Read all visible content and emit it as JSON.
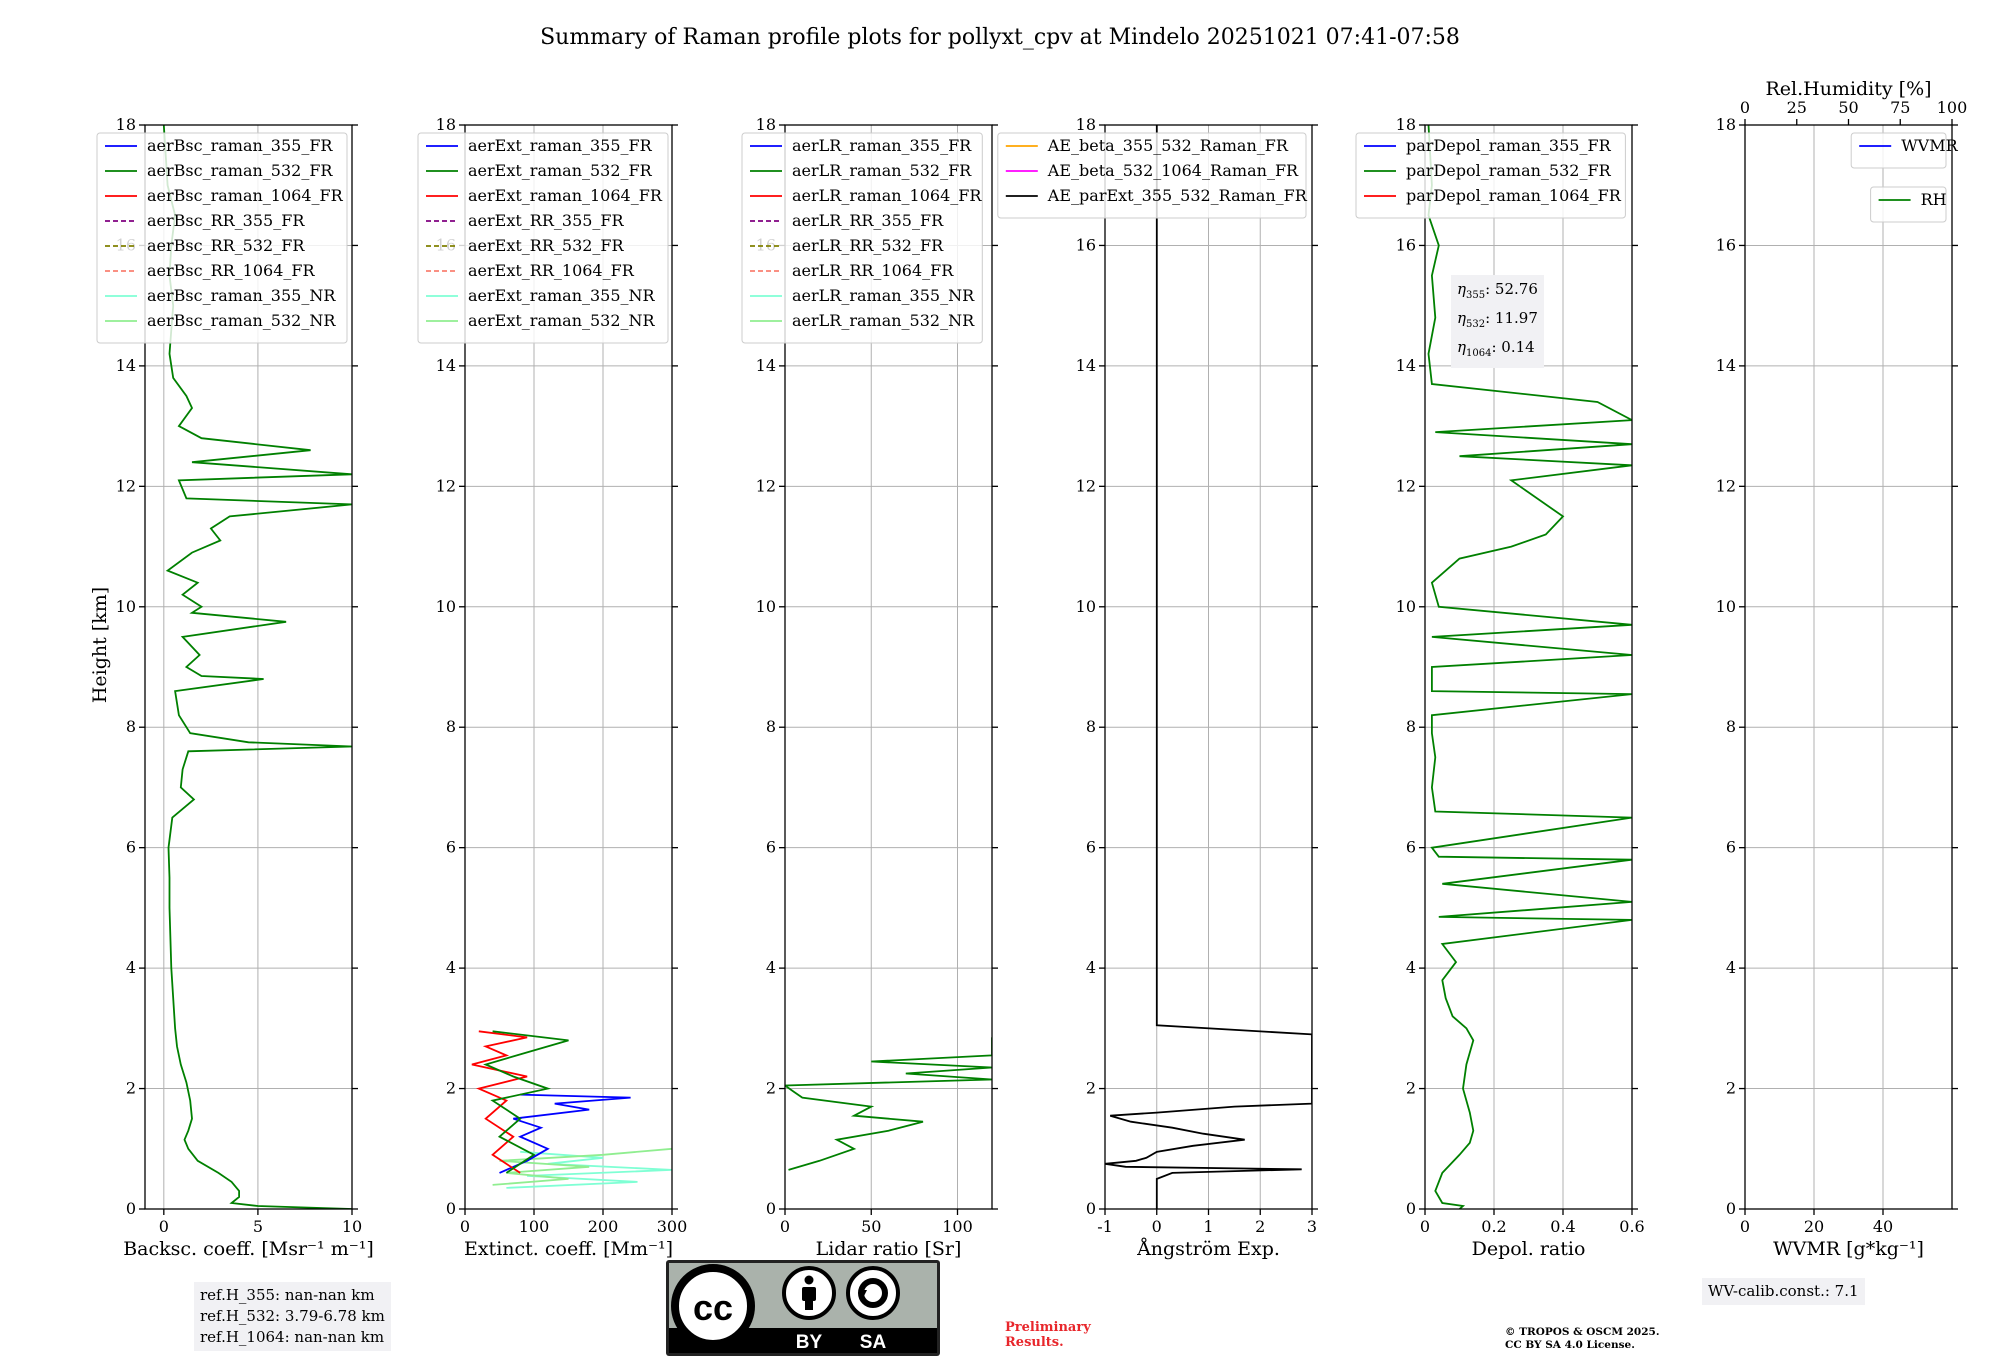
{
  "title": "Summary of Raman profile plots for pollyxt_cpv at Mindelo 20251021 07:41-07:58",
  "height_label": "Height [km]",
  "colors": {
    "c355": "#0000ff",
    "c532": "#008000",
    "c1064": "#ff0000",
    "rr355": "#800080",
    "rr532": "#808000",
    "rr1064": "#fa8072",
    "nr355": "#7fffd4",
    "nr532": "#90ee90",
    "ae_a": "#ffa500",
    "ae_b": "#ff00ff",
    "ae_c": "#000000",
    "grid": "#b0b0b0"
  },
  "annotations": {
    "ref_h": [
      "ref.H_355: nan-nan km",
      "ref.H_532: 3.79-6.78 km",
      "ref.H_1064: nan-nan km"
    ],
    "eta": [
      {
        "sym": "η",
        "sub": "355",
        "val": ": 52.76"
      },
      {
        "sym": "η",
        "sub": "532",
        "val": ": 11.97"
      },
      {
        "sym": "η",
        "sub": "1064",
        "val": ": 0.14"
      }
    ],
    "wv_calib": "WV-calib.const.: 7.1",
    "preliminary": [
      "Preliminary",
      "Results."
    ],
    "copyright": [
      "© TROPOS & OSCM 2025.",
      "CC BY SA 4.0 License."
    ],
    "cc_badge": {
      "by": "BY",
      "sa": "SA"
    }
  },
  "chart_data": [
    {
      "type": "line",
      "xlabel": "Backsc. coeff. [Msr⁻¹ m⁻¹]",
      "ylabel": "Height [km]",
      "xlim": [
        -1,
        10
      ],
      "ylim": [
        0,
        18
      ],
      "xticks": [
        0,
        5,
        10
      ],
      "yticks": [
        0,
        2,
        4,
        6,
        8,
        10,
        12,
        14,
        16,
        18
      ],
      "legend": {
        "loc": "upper-left",
        "entries": [
          {
            "label": "aerBsc_raman_355_FR",
            "color": "c355",
            "dash": false
          },
          {
            "label": "aerBsc_raman_532_FR",
            "color": "c532",
            "dash": false
          },
          {
            "label": "aerBsc_raman_1064_FR",
            "color": "c1064",
            "dash": false
          },
          {
            "label": "aerBsc_RR_355_FR",
            "color": "rr355",
            "dash": true
          },
          {
            "label": "aerBsc_RR_532_FR",
            "color": "rr532",
            "dash": true
          },
          {
            "label": "aerBsc_RR_1064_FR",
            "color": "rr1064",
            "dash": true
          },
          {
            "label": "aerBsc_raman_355_NR",
            "color": "nr355",
            "dash": false
          },
          {
            "label": "aerBsc_raman_532_NR",
            "color": "nr532",
            "dash": false
          }
        ]
      },
      "series": [
        {
          "name": "aerBsc_raman_532_FR",
          "color": "c532",
          "h": [
            0,
            0.05,
            0.1,
            0.2,
            0.3,
            0.45,
            0.6,
            0.8,
            1.0,
            1.15,
            1.3,
            1.5,
            1.8,
            2.1,
            2.4,
            2.7,
            3.0,
            3.5,
            4.0,
            4.5,
            5.0,
            5.5,
            6.0,
            6.5,
            6.8,
            7.0,
            7.3,
            7.6,
            7.68,
            7.75,
            7.9,
            8.2,
            8.6,
            8.8,
            8.85,
            9.0,
            9.2,
            9.5,
            9.75,
            9.9,
            10.0,
            10.2,
            10.4,
            10.6,
            10.9,
            11.1,
            11.3,
            11.5,
            11.7,
            11.8,
            12.1,
            12.2,
            12.4,
            12.6,
            12.8,
            13.0,
            13.3,
            13.5,
            13.8,
            14.2,
            14.6,
            15.0,
            15.5,
            16.0,
            16.5,
            17.0,
            17.5,
            18.0
          ],
          "v": [
            10,
            5,
            3.6,
            4.0,
            4.0,
            3.6,
            2.9,
            1.8,
            1.3,
            1.1,
            1.3,
            1.5,
            1.4,
            1.2,
            0.9,
            0.7,
            0.6,
            0.5,
            0.4,
            0.35,
            0.3,
            0.3,
            0.25,
            0.45,
            1.6,
            0.9,
            1.0,
            1.3,
            10,
            4.5,
            1.4,
            0.8,
            0.6,
            5.3,
            2.0,
            1.2,
            1.9,
            1.0,
            6.5,
            1.5,
            2.0,
            1.0,
            1.8,
            0.2,
            1.5,
            3.0,
            2.5,
            3.5,
            10,
            1.2,
            0.8,
            10,
            1.5,
            7.8,
            2.0,
            0.8,
            1.5,
            1.2,
            0.5,
            0.3,
            0.4,
            0.5,
            0.3,
            0.4,
            0.6,
            0.2,
            0.1,
            0
          ]
        }
      ]
    },
    {
      "type": "line",
      "xlabel": "Extinct. coeff. [Mm⁻¹]",
      "ylabel": "",
      "xlim": [
        0,
        300
      ],
      "ylim": [
        0,
        18
      ],
      "xticks": [
        0,
        100,
        200,
        300
      ],
      "yticks": [
        0,
        2,
        4,
        6,
        8,
        10,
        12,
        14,
        16,
        18
      ],
      "legend": {
        "loc": "upper-left",
        "entries": [
          {
            "label": "aerExt_raman_355_FR",
            "color": "c355",
            "dash": false
          },
          {
            "label": "aerExt_raman_532_FR",
            "color": "c532",
            "dash": false
          },
          {
            "label": "aerExt_raman_1064_FR",
            "color": "c1064",
            "dash": false
          },
          {
            "label": "aerExt_RR_355_FR",
            "color": "rr355",
            "dash": true
          },
          {
            "label": "aerExt_RR_532_FR",
            "color": "rr532",
            "dash": true
          },
          {
            "label": "aerExt_RR_1064_FR",
            "color": "rr1064",
            "dash": true
          },
          {
            "label": "aerExt_raman_355_NR",
            "color": "nr355",
            "dash": false
          },
          {
            "label": "aerExt_raman_532_NR",
            "color": "nr532",
            "dash": false
          }
        ]
      },
      "series": [
        {
          "name": "aerExt_raman_355_NR",
          "color": "nr355",
          "h": [
            0.35,
            0.45,
            0.55,
            0.65,
            0.75,
            0.85,
            0.95
          ],
          "v": [
            60,
            250,
            90,
            300,
            120,
            200,
            80
          ]
        },
        {
          "name": "aerExt_raman_532_NR",
          "color": "nr532",
          "h": [
            0.4,
            0.5,
            0.6,
            0.7,
            0.8,
            0.9,
            1.0
          ],
          "v": [
            40,
            150,
            60,
            180,
            50,
            200,
            300
          ]
        },
        {
          "name": "aerExt_raman_355_FR",
          "color": "c355",
          "h": [
            0.6,
            0.8,
            1.0,
            1.2,
            1.35,
            1.5,
            1.65,
            1.75,
            1.85,
            1.9
          ],
          "v": [
            50,
            90,
            120,
            80,
            110,
            70,
            180,
            130,
            240,
            80
          ]
        },
        {
          "name": "aerExt_raman_1064_FR",
          "color": "c1064",
          "h": [
            0.6,
            0.9,
            1.2,
            1.5,
            1.8,
            2.0,
            2.2,
            2.4,
            2.55,
            2.7,
            2.85,
            2.95
          ],
          "v": [
            80,
            40,
            70,
            30,
            60,
            20,
            90,
            10,
            60,
            30,
            90,
            20
          ]
        },
        {
          "name": "aerExt_raman_532_FR",
          "color": "c532",
          "h": [
            0.6,
            0.9,
            1.2,
            1.5,
            1.8,
            2.0,
            2.2,
            2.4,
            2.6,
            2.8,
            2.95
          ],
          "v": [
            60,
            100,
            50,
            80,
            40,
            120,
            70,
            30,
            90,
            150,
            40
          ]
        }
      ]
    },
    {
      "type": "line",
      "xlabel": "Lidar ratio [Sr]",
      "ylabel": "",
      "xlim": [
        0,
        120
      ],
      "ylim": [
        0,
        18
      ],
      "xticks": [
        0,
        50,
        100
      ],
      "yticks": [
        0,
        2,
        4,
        6,
        8,
        10,
        12,
        14,
        16,
        18
      ],
      "legend": {
        "loc": "upper-left",
        "entries": [
          {
            "label": "aerLR_raman_355_FR",
            "color": "c355",
            "dash": false
          },
          {
            "label": "aerLR_raman_532_FR",
            "color": "c532",
            "dash": false
          },
          {
            "label": "aerLR_raman_1064_FR",
            "color": "c1064",
            "dash": false
          },
          {
            "label": "aerLR_RR_355_FR",
            "color": "rr355",
            "dash": true
          },
          {
            "label": "aerLR_RR_532_FR",
            "color": "rr532",
            "dash": true
          },
          {
            "label": "aerLR_RR_1064_FR",
            "color": "rr1064",
            "dash": true
          },
          {
            "label": "aerLR_raman_355_NR",
            "color": "nr355",
            "dash": false
          },
          {
            "label": "aerLR_raman_532_NR",
            "color": "nr532",
            "dash": false
          }
        ]
      },
      "series": [
        {
          "name": "aerLR_raman_532_FR",
          "color": "c532",
          "h": [
            0.65,
            0.8,
            1.0,
            1.15,
            1.3,
            1.45,
            1.55,
            1.7,
            1.85,
            1.95,
            2.05,
            2.15,
            2.25,
            2.35,
            2.45,
            2.55,
            2.65,
            2.75,
            2.85
          ],
          "v": [
            2,
            20,
            40,
            30,
            60,
            80,
            40,
            50,
            10,
            5,
            0,
            120,
            70,
            120,
            50,
            120,
            120,
            120,
            120
          ]
        }
      ]
    },
    {
      "type": "line",
      "xlabel": "Ångström Exp.",
      "ylabel": "",
      "xlim": [
        -1,
        3
      ],
      "ylim": [
        0,
        18
      ],
      "xticks": [
        -1,
        0,
        1,
        2,
        3
      ],
      "yticks": [
        0,
        2,
        4,
        6,
        8,
        10,
        12,
        14,
        16,
        18
      ],
      "legend": {
        "loc": "upper-right",
        "entries": [
          {
            "label": "AE_beta_355_532_Raman_FR",
            "color": "ae_a",
            "dash": false
          },
          {
            "label": "AE_beta_532_1064_Raman_FR",
            "color": "ae_b",
            "dash": false
          },
          {
            "label": "AE_parExt_355_532_Raman_FR",
            "color": "ae_c",
            "dash": false
          }
        ]
      },
      "series": [
        {
          "name": "AE_parExt_355_532_Raman_FR",
          "color": "ae_c",
          "h": [
            0.0,
            0.5,
            0.6,
            0.66,
            0.7,
            0.75,
            0.8,
            0.85,
            0.95,
            1.05,
            1.15,
            1.25,
            1.35,
            1.45,
            1.55,
            1.6,
            1.7,
            1.75,
            2.0,
            2.8,
            2.9,
            3.05,
            5.0,
            10.0,
            18.0
          ],
          "v": [
            0,
            0,
            0.3,
            2.8,
            -0.6,
            -1.0,
            -0.4,
            -0.2,
            0,
            0.7,
            1.7,
            0.9,
            0.3,
            -0.5,
            -0.9,
            0,
            1.5,
            3,
            3,
            3,
            3,
            0,
            0,
            0,
            0
          ]
        }
      ]
    },
    {
      "type": "line",
      "xlabel": "Depol. ratio",
      "ylabel": "",
      "xlim": [
        0,
        0.6
      ],
      "ylim": [
        0,
        18
      ],
      "xticks": [
        0.0,
        0.2,
        0.4,
        0.6
      ],
      "yticks": [
        0,
        2,
        4,
        6,
        8,
        10,
        12,
        14,
        16,
        18
      ],
      "legend": {
        "loc": "upper-left",
        "entries": [
          {
            "label": "parDepol_raman_355_FR",
            "color": "c355",
            "dash": false
          },
          {
            "label": "parDepol_raman_532_FR",
            "color": "c532",
            "dash": false
          },
          {
            "label": "parDepol_raman_1064_FR",
            "color": "c1064",
            "dash": false
          }
        ]
      },
      "series": [
        {
          "name": "parDepol_raman_532_FR",
          "color": "c532",
          "h": [
            0,
            0.05,
            0.1,
            0.3,
            0.6,
            0.9,
            1.1,
            1.3,
            1.6,
            2.0,
            2.4,
            2.8,
            3.0,
            3.2,
            3.5,
            3.8,
            4.1,
            4.4,
            4.8,
            4.85,
            5.1,
            5.4,
            5.8,
            5.85,
            6.0,
            6.5,
            6.6,
            7.0,
            7.5,
            7.9,
            8.2,
            8.55,
            8.6,
            9.0,
            9.2,
            9.5,
            9.7,
            10.0,
            10.4,
            10.8,
            11.0,
            11.2,
            11.5,
            11.9,
            12.1,
            12.35,
            12.5,
            12.7,
            12.9,
            13.1,
            13.4,
            13.7,
            14.2,
            14.8,
            15.5,
            16.0,
            16.5,
            17.0,
            18.0
          ],
          "v": [
            0.1,
            0.11,
            0.05,
            0.03,
            0.05,
            0.1,
            0.13,
            0.14,
            0.13,
            0.11,
            0.12,
            0.14,
            0.12,
            0.08,
            0.06,
            0.05,
            0.09,
            0.05,
            0.6,
            0.04,
            0.6,
            0.05,
            0.6,
            0.04,
            0.02,
            0.6,
            0.03,
            0.02,
            0.03,
            0.02,
            0.02,
            0.6,
            0.02,
            0.02,
            0.6,
            0.02,
            0.6,
            0.04,
            0.02,
            0.1,
            0.25,
            0.35,
            0.4,
            0.3,
            0.25,
            0.6,
            0.1,
            0.6,
            0.03,
            0.6,
            0.5,
            0.02,
            0.01,
            0.03,
            0.02,
            0.04,
            0.01,
            0.02,
            0.01
          ]
        }
      ]
    },
    {
      "type": "line",
      "xlabel": "WVMR [g*kg⁻¹]",
      "ylabel": "",
      "xlim": [
        0,
        60
      ],
      "ylim": [
        0,
        18
      ],
      "xticks": [
        0,
        20,
        40
      ],
      "yticks": [
        0,
        2,
        4,
        6,
        8,
        10,
        12,
        14,
        16,
        18
      ],
      "top_axis": {
        "label": "Rel.Humidity [%]",
        "ticks": [
          0,
          25,
          50,
          75,
          100
        ],
        "lim": [
          0,
          100
        ]
      },
      "legend": {
        "loc": "upper-right",
        "entries": [
          {
            "label": "WVMR",
            "color": "c355",
            "dash": false
          }
        ]
      },
      "legend2": {
        "loc": "upper-right",
        "entries": [
          {
            "label": "RH",
            "color": "c532",
            "dash": false
          }
        ]
      },
      "series": []
    }
  ]
}
